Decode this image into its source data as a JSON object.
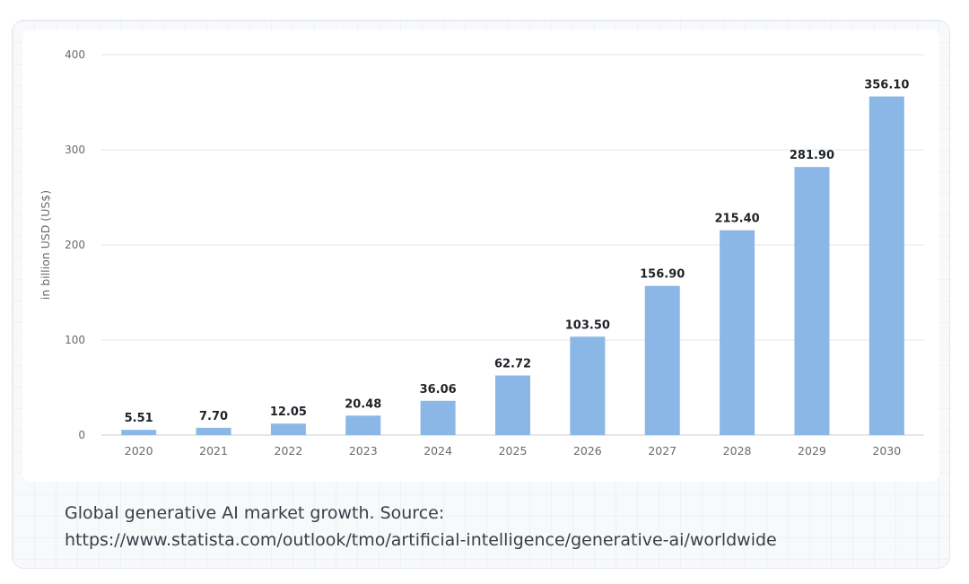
{
  "colors": {
    "bar": "#8ab7e6",
    "gridline": "#e2e6ec",
    "tick_label": "#666a70",
    "value_label": "#1f2328",
    "caption": "#3a3f47"
  },
  "caption": {
    "line1": "Global generative AI market growth. Source:",
    "line2": "https://www.statista.com/outlook/tmo/artificial-intelligence/generative-ai/worldwide"
  },
  "chart_data": {
    "type": "bar",
    "title": "",
    "xlabel": "",
    "ylabel": "in billion USD (US$)",
    "ylim": [
      0,
      400
    ],
    "yticks": [
      0,
      100,
      200,
      300,
      400
    ],
    "grid": true,
    "categories": [
      "2020",
      "2021",
      "2022",
      "2023",
      "2024",
      "2025",
      "2026",
      "2027",
      "2028",
      "2029",
      "2030"
    ],
    "values": [
      5.51,
      7.7,
      12.05,
      20.48,
      36.06,
      62.72,
      103.5,
      156.9,
      215.4,
      281.9,
      356.1
    ],
    "value_labels": [
      "5.51",
      "7.70",
      "12.05",
      "20.48",
      "36.06",
      "62.72",
      "103.50",
      "156.90",
      "215.40",
      "281.90",
      "356.10"
    ]
  }
}
